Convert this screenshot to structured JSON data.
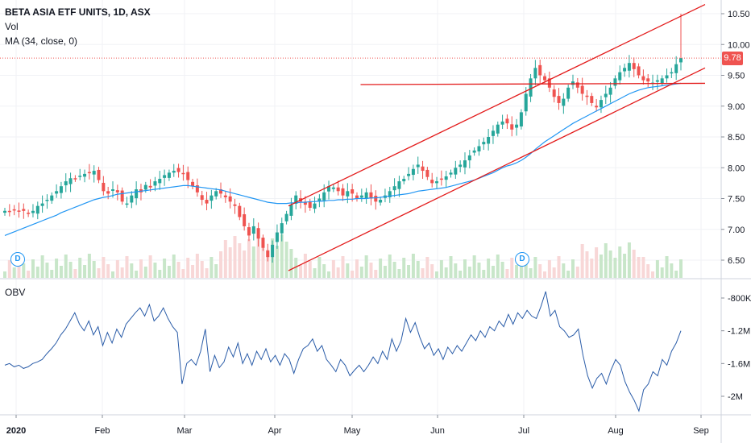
{
  "legend": {
    "title": "BETA ASIA ETF UNITS, 1D, ASX",
    "vol": "Vol",
    "ma": "MA (34, close, 0)"
  },
  "obv_label": "OBV",
  "last_price_label": "9.78",
  "dividend_markers": [
    "D",
    "D"
  ],
  "colors": {
    "up": "#26a69a",
    "down": "#ef5350",
    "ma": "#2196f3",
    "obv": "#2a5ca8",
    "trendline": "#e31b1b",
    "volume_up": "#c8e6c9",
    "volume_down": "#f8d7d7"
  },
  "chart_data": [
    {
      "type": "candlestick",
      "title": "BETA ASIA ETF UNITS, 1D, ASX",
      "y_ticks": [
        "10.50",
        "10.00",
        "9.50",
        "9.00",
        "8.50",
        "8.00",
        "7.50",
        "7.00",
        "6.50"
      ],
      "ylim": [
        6.3,
        10.65
      ],
      "x_ticks": [
        "2020",
        "Feb",
        "Mar",
        "Apr",
        "May",
        "Jun",
        "Jul",
        "Aug",
        "Sep"
      ],
      "close": [
        7.3,
        7.28,
        7.32,
        7.3,
        7.3,
        7.25,
        7.3,
        7.38,
        7.42,
        7.48,
        7.55,
        7.62,
        7.7,
        7.78,
        7.83,
        7.82,
        7.87,
        7.9,
        7.92,
        7.95,
        7.8,
        7.62,
        7.58,
        7.65,
        7.6,
        7.45,
        7.42,
        7.55,
        7.65,
        7.6,
        7.72,
        7.68,
        7.78,
        7.82,
        7.88,
        7.92,
        7.95,
        7.93,
        7.9,
        7.8,
        7.7,
        7.6,
        7.48,
        7.42,
        7.55,
        7.62,
        7.58,
        7.52,
        7.45,
        7.38,
        7.2,
        7.05,
        6.9,
        7.05,
        6.85,
        6.7,
        6.55,
        6.75,
        6.95,
        7.1,
        7.25,
        7.4,
        7.55,
        7.45,
        7.4,
        7.35,
        7.42,
        7.5,
        7.6,
        7.7,
        7.68,
        7.62,
        7.55,
        7.62,
        7.58,
        7.5,
        7.55,
        7.6,
        7.5,
        7.45,
        7.48,
        7.55,
        7.62,
        7.7,
        7.78,
        7.82,
        7.9,
        7.98,
        8.05,
        7.95,
        7.85,
        7.75,
        7.78,
        7.82,
        7.86,
        7.92,
        8.0,
        8.05,
        8.12,
        8.2,
        8.28,
        8.35,
        8.42,
        8.5,
        8.6,
        8.7,
        8.75,
        8.72,
        8.62,
        8.7,
        8.9,
        9.2,
        9.45,
        9.62,
        9.5,
        9.42,
        9.3,
        9.15,
        9.05,
        9.12,
        9.3,
        9.4,
        9.3,
        9.2,
        9.15,
        9.05,
        8.98,
        9.1,
        9.2,
        9.3,
        9.45,
        9.55,
        9.62,
        9.7,
        9.6,
        9.5,
        9.42,
        9.4,
        9.38,
        9.42,
        9.45,
        9.5,
        9.55,
        9.68,
        9.78
      ],
      "ma": [
        6.9,
        6.93,
        6.96,
        6.99,
        7.02,
        7.05,
        7.08,
        7.11,
        7.14,
        7.17,
        7.2,
        7.23,
        7.27,
        7.3,
        7.33,
        7.36,
        7.39,
        7.42,
        7.45,
        7.48,
        7.5,
        7.52,
        7.53,
        7.55,
        7.57,
        7.58,
        7.59,
        7.6,
        7.61,
        7.62,
        7.63,
        7.64,
        7.65,
        7.66,
        7.67,
        7.68,
        7.69,
        7.7,
        7.71,
        7.71,
        7.7,
        7.69,
        7.68,
        7.67,
        7.66,
        7.65,
        7.64,
        7.62,
        7.6,
        7.58,
        7.56,
        7.54,
        7.52,
        7.5,
        7.48,
        7.46,
        7.44,
        7.43,
        7.42,
        7.42,
        7.42,
        7.43,
        7.43,
        7.44,
        7.44,
        7.45,
        7.45,
        7.46,
        7.46,
        7.47,
        7.47,
        7.48,
        7.48,
        7.49,
        7.49,
        7.5,
        7.5,
        7.5,
        7.51,
        7.51,
        7.52,
        7.53,
        7.54,
        7.55,
        7.56,
        7.57,
        7.58,
        7.6,
        7.62,
        7.63,
        7.64,
        7.65,
        7.66,
        7.67,
        7.68,
        7.7,
        7.72,
        7.74,
        7.76,
        7.78,
        7.8,
        7.83,
        7.86,
        7.89,
        7.92,
        7.96,
        8.0,
        8.03,
        8.05,
        8.08,
        8.12,
        8.17,
        8.23,
        8.3,
        8.36,
        8.42,
        8.47,
        8.52,
        8.57,
        8.62,
        8.67,
        8.72,
        8.76,
        8.8,
        8.84,
        8.88,
        8.92,
        8.96,
        9.0,
        9.04,
        9.08,
        9.12,
        9.16,
        9.2,
        9.23,
        9.26,
        9.28,
        9.3,
        9.31,
        9.32,
        9.33,
        9.34,
        9.35,
        9.36,
        9.37
      ],
      "last_price": 9.78,
      "spike_high": 10.5,
      "trendlines": [
        {
          "name": "upper",
          "from": [
            7.38,
            0.4
          ],
          "to": [
            10.65,
            1.0
          ]
        },
        {
          "name": "lower",
          "from": [
            6.33,
            0.4
          ],
          "to": [
            9.62,
            1.0
          ]
        },
        {
          "name": "flat",
          "from": [
            9.35,
            0.5
          ],
          "to": [
            9.37,
            1.0
          ]
        }
      ]
    },
    {
      "type": "line",
      "title": "OBV",
      "y_ticks": [
        "-800K",
        "-1.2M",
        "-1.6M",
        "-2M"
      ],
      "ylim": [
        -2.3,
        -0.6
      ],
      "values": [
        -1.62,
        -1.6,
        -1.64,
        -1.62,
        -1.66,
        -1.64,
        -1.6,
        -1.58,
        -1.55,
        -1.48,
        -1.42,
        -1.35,
        -1.25,
        -1.18,
        -1.08,
        -0.98,
        -1.12,
        -1.2,
        -1.08,
        -1.25,
        -1.15,
        -1.38,
        -1.22,
        -1.35,
        -1.18,
        -1.28,
        -1.12,
        -1.05,
        -0.98,
        -0.92,
        -1.02,
        -0.88,
        -1.08,
        -1.02,
        -0.92,
        -1.05,
        -1.15,
        -1.22,
        -1.85,
        -1.6,
        -1.55,
        -1.62,
        -1.45,
        -1.18,
        -1.7,
        -1.5,
        -1.65,
        -1.58,
        -1.4,
        -1.52,
        -1.35,
        -1.6,
        -1.48,
        -1.62,
        -1.45,
        -1.55,
        -1.42,
        -1.58,
        -1.5,
        -1.62,
        -1.48,
        -1.55,
        -1.72,
        -1.55,
        -1.42,
        -1.38,
        -1.3,
        -1.45,
        -1.38,
        -1.55,
        -1.62,
        -1.7,
        -1.55,
        -1.62,
        -1.75,
        -1.68,
        -1.62,
        -1.7,
        -1.62,
        -1.52,
        -1.6,
        -1.45,
        -1.55,
        -1.3,
        -1.45,
        -1.32,
        -1.05,
        -1.22,
        -1.1,
        -1.28,
        -1.42,
        -1.35,
        -1.5,
        -1.42,
        -1.55,
        -1.4,
        -1.48,
        -1.38,
        -1.45,
        -1.35,
        -1.25,
        -1.32,
        -1.2,
        -1.28,
        -1.15,
        -1.2,
        -1.08,
        -1.15,
        -1.0,
        -1.12,
        -0.98,
        -1.05,
        -0.95,
        -1.02,
        -1.05,
        -0.9,
        -0.72,
        -1.02,
        -0.95,
        -1.15,
        -1.2,
        -1.28,
        -1.25,
        -1.18,
        -1.5,
        -1.75,
        -1.9,
        -1.78,
        -1.72,
        -1.85,
        -1.68,
        -1.55,
        -1.62,
        -1.82,
        -1.95,
        -2.05,
        -2.18,
        -1.92,
        -1.85,
        -1.7,
        -1.75,
        -1.55,
        -1.62,
        -1.45,
        -1.35,
        -1.2
      ]
    }
  ]
}
